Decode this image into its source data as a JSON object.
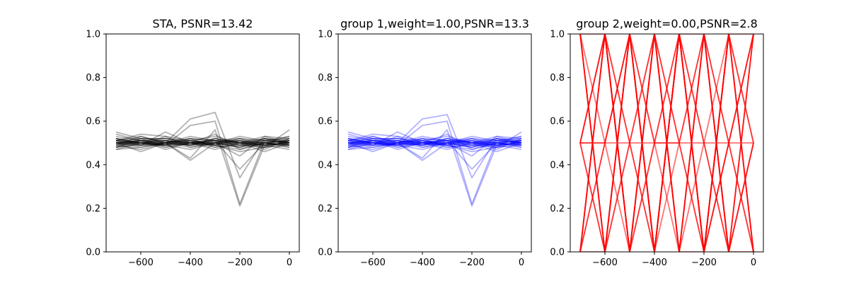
{
  "figure": {
    "background": "#ffffff"
  },
  "chart_data": [
    {
      "type": "line",
      "title": "STA, PSNR=13.42",
      "xlabel": "",
      "ylabel": "",
      "xlim": [
        -740,
        40
      ],
      "ylim": [
        0,
        1
      ],
      "x_ticks": [
        -600,
        -400,
        -200,
        0
      ],
      "x_tick_labels": [
        "−600",
        "−400",
        "−200",
        "0"
      ],
      "y_ticks": [
        0.0,
        0.2,
        0.4,
        0.6,
        0.8,
        1.0
      ],
      "y_tick_labels": [
        "0.0",
        "0.2",
        "0.4",
        "0.6",
        "0.8",
        "1.0"
      ],
      "x": [
        -700,
        -600,
        -500,
        -400,
        -300,
        -200,
        -100,
        0
      ],
      "line_color": "#000000",
      "line_opacity": 0.3,
      "series": [
        {
          "values": [
            0.5,
            0.51,
            0.49,
            0.5,
            0.51,
            0.5,
            0.49,
            0.5
          ]
        },
        {
          "values": [
            0.52,
            0.5,
            0.51,
            0.49,
            0.5,
            0.48,
            0.51,
            0.52
          ]
        },
        {
          "values": [
            0.48,
            0.49,
            0.5,
            0.51,
            0.49,
            0.51,
            0.5,
            0.49
          ]
        },
        {
          "values": [
            0.51,
            0.53,
            0.5,
            0.52,
            0.51,
            0.49,
            0.48,
            0.51
          ]
        },
        {
          "values": [
            0.49,
            0.47,
            0.5,
            0.49,
            0.52,
            0.5,
            0.51,
            0.5
          ]
        },
        {
          "values": [
            0.5,
            0.52,
            0.48,
            0.5,
            0.5,
            0.52,
            0.5,
            0.48
          ]
        },
        {
          "values": [
            0.53,
            0.51,
            0.52,
            0.5,
            0.49,
            0.47,
            0.5,
            0.51
          ]
        },
        {
          "values": [
            0.47,
            0.5,
            0.49,
            0.51,
            0.53,
            0.5,
            0.49,
            0.5
          ]
        },
        {
          "values": [
            0.55,
            0.52,
            0.51,
            0.5,
            0.48,
            0.5,
            0.52,
            0.49
          ]
        },
        {
          "values": [
            0.51,
            0.49,
            0.53,
            0.48,
            0.5,
            0.51,
            0.47,
            0.52
          ]
        },
        {
          "values": [
            0.5,
            0.48,
            0.5,
            0.53,
            0.51,
            0.49,
            0.5,
            0.53
          ]
        },
        {
          "values": [
            0.49,
            0.51,
            0.47,
            0.5,
            0.52,
            0.5,
            0.49,
            0.47
          ]
        },
        {
          "values": [
            0.52,
            0.5,
            0.5,
            0.49,
            0.5,
            0.48,
            0.52,
            0.5
          ]
        },
        {
          "values": [
            0.48,
            0.52,
            0.52,
            0.51,
            0.49,
            0.52,
            0.48,
            0.51
          ]
        },
        {
          "values": [
            0.5,
            0.49,
            0.55,
            0.5,
            0.51,
            0.5,
            0.5,
            0.49
          ]
        },
        {
          "values": [
            0.51,
            0.5,
            0.49,
            0.47,
            0.5,
            0.53,
            0.51,
            0.5
          ]
        },
        {
          "values": [
            0.49,
            0.53,
            0.5,
            0.52,
            0.48,
            0.49,
            0.49,
            0.52
          ]
        },
        {
          "values": [
            0.54,
            0.51,
            0.51,
            0.49,
            0.52,
            0.5,
            0.53,
            0.5
          ]
        },
        {
          "values": [
            0.5,
            0.5,
            0.48,
            0.5,
            0.54,
            0.47,
            0.5,
            0.48
          ]
        },
        {
          "values": [
            0.47,
            0.48,
            0.5,
            0.51,
            0.5,
            0.51,
            0.5,
            0.51
          ]
        },
        {
          "values": [
            0.51,
            0.52,
            0.52,
            0.5,
            0.49,
            0.5,
            0.48,
            0.49
          ]
        },
        {
          "values": [
            0.52,
            0.49,
            0.49,
            0.52,
            0.51,
            0.52,
            0.51,
            0.53
          ]
        },
        {
          "values": [
            0.5,
            0.51,
            0.5,
            0.48,
            0.5,
            0.49,
            0.52,
            0.5
          ]
        },
        {
          "values": [
            0.48,
            0.5,
            0.51,
            0.5,
            0.47,
            0.5,
            0.5,
            0.51
          ]
        },
        {
          "values": [
            0.5,
            0.46,
            0.5,
            0.49,
            0.51,
            0.51,
            0.49,
            0.5
          ]
        },
        {
          "values": [
            0.51,
            0.54,
            0.53,
            0.51,
            0.5,
            0.48,
            0.5,
            0.49
          ]
        },
        {
          "values": [
            0.5,
            0.5,
            0.5,
            0.61,
            0.64,
            0.34,
            0.52,
            0.51
          ]
        },
        {
          "values": [
            0.51,
            0.5,
            0.49,
            0.58,
            0.6,
            0.22,
            0.51,
            0.5
          ]
        },
        {
          "values": [
            0.49,
            0.5,
            0.5,
            0.43,
            0.56,
            0.21,
            0.49,
            0.5
          ]
        },
        {
          "values": [
            0.5,
            0.51,
            0.5,
            0.5,
            0.51,
            0.38,
            0.5,
            0.49
          ]
        },
        {
          "values": [
            0.5,
            0.49,
            0.5,
            0.42,
            0.5,
            0.5,
            0.46,
            0.5
          ]
        },
        {
          "values": [
            0.52,
            0.5,
            0.49,
            0.5,
            0.5,
            0.44,
            0.53,
            0.52
          ]
        },
        {
          "values": [
            0.48,
            0.51,
            0.51,
            0.5,
            0.49,
            0.46,
            0.48,
            0.56
          ]
        }
      ]
    },
    {
      "type": "line",
      "title": "group 1,weight=1.00,PSNR=13.3",
      "xlabel": "",
      "ylabel": "",
      "xlim": [
        -740,
        40
      ],
      "ylim": [
        0,
        1
      ],
      "x_ticks": [
        -600,
        -400,
        -200,
        0
      ],
      "x_tick_labels": [
        "−600",
        "−400",
        "−200",
        "0"
      ],
      "y_ticks": [
        0.0,
        0.2,
        0.4,
        0.6,
        0.8,
        1.0
      ],
      "y_tick_labels": [
        "0.0",
        "0.2",
        "0.4",
        "0.6",
        "0.8",
        "1.0"
      ],
      "x": [
        -700,
        -600,
        -500,
        -400,
        -300,
        -200,
        -100,
        0
      ],
      "line_color": "#0000ff",
      "line_opacity": 0.3,
      "series": [
        {
          "values": [
            0.5,
            0.51,
            0.49,
            0.5,
            0.51,
            0.5,
            0.49,
            0.5
          ]
        },
        {
          "values": [
            0.52,
            0.5,
            0.51,
            0.49,
            0.5,
            0.48,
            0.51,
            0.52
          ]
        },
        {
          "values": [
            0.48,
            0.49,
            0.5,
            0.51,
            0.49,
            0.51,
            0.5,
            0.49
          ]
        },
        {
          "values": [
            0.51,
            0.53,
            0.5,
            0.52,
            0.51,
            0.49,
            0.48,
            0.51
          ]
        },
        {
          "values": [
            0.49,
            0.47,
            0.5,
            0.49,
            0.52,
            0.5,
            0.51,
            0.5
          ]
        },
        {
          "values": [
            0.5,
            0.52,
            0.48,
            0.5,
            0.5,
            0.52,
            0.5,
            0.48
          ]
        },
        {
          "values": [
            0.53,
            0.51,
            0.52,
            0.5,
            0.49,
            0.47,
            0.5,
            0.51
          ]
        },
        {
          "values": [
            0.47,
            0.5,
            0.49,
            0.51,
            0.53,
            0.5,
            0.49,
            0.5
          ]
        },
        {
          "values": [
            0.55,
            0.52,
            0.51,
            0.5,
            0.48,
            0.5,
            0.52,
            0.49
          ]
        },
        {
          "values": [
            0.51,
            0.49,
            0.53,
            0.48,
            0.5,
            0.51,
            0.47,
            0.52
          ]
        },
        {
          "values": [
            0.5,
            0.48,
            0.5,
            0.53,
            0.51,
            0.49,
            0.5,
            0.53
          ]
        },
        {
          "values": [
            0.49,
            0.51,
            0.47,
            0.5,
            0.52,
            0.5,
            0.49,
            0.47
          ]
        },
        {
          "values": [
            0.52,
            0.5,
            0.5,
            0.49,
            0.5,
            0.48,
            0.52,
            0.5
          ]
        },
        {
          "values": [
            0.48,
            0.52,
            0.52,
            0.51,
            0.49,
            0.52,
            0.48,
            0.51
          ]
        },
        {
          "values": [
            0.5,
            0.49,
            0.55,
            0.5,
            0.51,
            0.5,
            0.5,
            0.49
          ]
        },
        {
          "values": [
            0.51,
            0.5,
            0.49,
            0.47,
            0.5,
            0.53,
            0.51,
            0.5
          ]
        },
        {
          "values": [
            0.49,
            0.53,
            0.5,
            0.52,
            0.48,
            0.49,
            0.49,
            0.52
          ]
        },
        {
          "values": [
            0.54,
            0.51,
            0.51,
            0.49,
            0.52,
            0.5,
            0.53,
            0.5
          ]
        },
        {
          "values": [
            0.5,
            0.5,
            0.48,
            0.5,
            0.54,
            0.47,
            0.5,
            0.48
          ]
        },
        {
          "values": [
            0.47,
            0.48,
            0.5,
            0.51,
            0.5,
            0.51,
            0.5,
            0.51
          ]
        },
        {
          "values": [
            0.51,
            0.52,
            0.52,
            0.5,
            0.49,
            0.5,
            0.48,
            0.49
          ]
        },
        {
          "values": [
            0.52,
            0.49,
            0.49,
            0.52,
            0.51,
            0.52,
            0.51,
            0.53
          ]
        },
        {
          "values": [
            0.5,
            0.51,
            0.5,
            0.48,
            0.5,
            0.49,
            0.52,
            0.5
          ]
        },
        {
          "values": [
            0.48,
            0.5,
            0.51,
            0.5,
            0.47,
            0.5,
            0.5,
            0.51
          ]
        },
        {
          "values": [
            0.5,
            0.46,
            0.5,
            0.49,
            0.51,
            0.51,
            0.49,
            0.5
          ]
        },
        {
          "values": [
            0.51,
            0.54,
            0.53,
            0.51,
            0.5,
            0.48,
            0.5,
            0.49
          ]
        },
        {
          "values": [
            0.5,
            0.5,
            0.5,
            0.61,
            0.63,
            0.34,
            0.52,
            0.51
          ]
        },
        {
          "values": [
            0.51,
            0.5,
            0.49,
            0.58,
            0.6,
            0.22,
            0.51,
            0.5
          ]
        },
        {
          "values": [
            0.49,
            0.5,
            0.5,
            0.43,
            0.56,
            0.21,
            0.49,
            0.5
          ]
        },
        {
          "values": [
            0.5,
            0.51,
            0.5,
            0.5,
            0.51,
            0.38,
            0.5,
            0.49
          ]
        },
        {
          "values": [
            0.5,
            0.49,
            0.5,
            0.42,
            0.5,
            0.5,
            0.46,
            0.5
          ]
        },
        {
          "values": [
            0.52,
            0.5,
            0.49,
            0.5,
            0.5,
            0.44,
            0.53,
            0.52
          ]
        },
        {
          "values": [
            0.48,
            0.51,
            0.51,
            0.5,
            0.49,
            0.46,
            0.48,
            0.55
          ]
        }
      ]
    },
    {
      "type": "line",
      "title": "group 2,weight=0.00,PSNR=2.8",
      "xlabel": "",
      "ylabel": "",
      "xlim": [
        -740,
        40
      ],
      "ylim": [
        0,
        1
      ],
      "x_ticks": [
        -600,
        -400,
        -200,
        0
      ],
      "x_tick_labels": [
        "−600",
        "−400",
        "−200",
        "0"
      ],
      "y_ticks": [
        0.0,
        0.2,
        0.4,
        0.6,
        0.8,
        1.0
      ],
      "y_tick_labels": [
        "0.0",
        "0.2",
        "0.4",
        "0.6",
        "0.8",
        "1.0"
      ],
      "x": [
        -700,
        -600,
        -500,
        -400,
        -300,
        -200,
        -100,
        0
      ],
      "line_color": "#ff0000",
      "line_opacity": 0.55,
      "series": [
        {
          "values": [
            0.5,
            0.5,
            0.5,
            0.5,
            0.5,
            0.5,
            0.5,
            0.5
          ]
        },
        {
          "values": [
            1,
            0,
            1,
            0,
            1,
            0,
            1,
            0
          ]
        },
        {
          "values": [
            0,
            1,
            0,
            1,
            0,
            1,
            0,
            1
          ]
        },
        {
          "values": [
            1,
            0,
            1,
            0,
            1,
            0,
            1,
            0
          ]
        },
        {
          "values": [
            0,
            1,
            0,
            1,
            0,
            1,
            0,
            1
          ]
        },
        {
          "values": [
            0.5,
            1,
            0,
            1,
            0,
            1,
            0,
            0.5
          ]
        },
        {
          "values": [
            0.5,
            0,
            1,
            0,
            1,
            0,
            1,
            0.5
          ]
        },
        {
          "values": [
            1,
            0.5,
            0,
            0.5,
            1,
            0.5,
            0,
            0.5
          ]
        },
        {
          "values": [
            0,
            0.5,
            1,
            0.5,
            0,
            0.5,
            1,
            0.5
          ]
        },
        {
          "values": [
            0.5,
            1,
            0.5,
            0,
            0.5,
            1,
            0.5,
            0
          ]
        },
        {
          "values": [
            0.5,
            0,
            0.5,
            1,
            0.5,
            0,
            0.5,
            1
          ]
        },
        {
          "values": [
            0,
            1,
            0.5,
            1,
            0,
            1,
            0.5,
            1
          ]
        },
        {
          "values": [
            1,
            0,
            0.5,
            0,
            1,
            0,
            0.5,
            0
          ]
        },
        {
          "values": [
            0.5,
            0.5,
            1,
            0,
            1,
            0,
            0.5,
            1
          ]
        },
        {
          "values": [
            1,
            0,
            1,
            0.5,
            0.5,
            1,
            0,
            0.5
          ]
        },
        {
          "values": [
            0,
            1,
            0,
            1,
            0.5,
            0,
            1,
            0
          ]
        },
        {
          "values": [
            0,
            0,
            1,
            0,
            1,
            1,
            0,
            1
          ]
        },
        {
          "values": [
            1,
            1,
            0,
            1,
            0,
            0,
            1,
            0
          ]
        },
        {
          "values": [
            0.5,
            1,
            0,
            0.5,
            1,
            0,
            1,
            1
          ]
        },
        {
          "values": [
            0,
            0.5,
            1,
            0,
            1,
            0.5,
            0,
            0
          ]
        }
      ]
    }
  ]
}
